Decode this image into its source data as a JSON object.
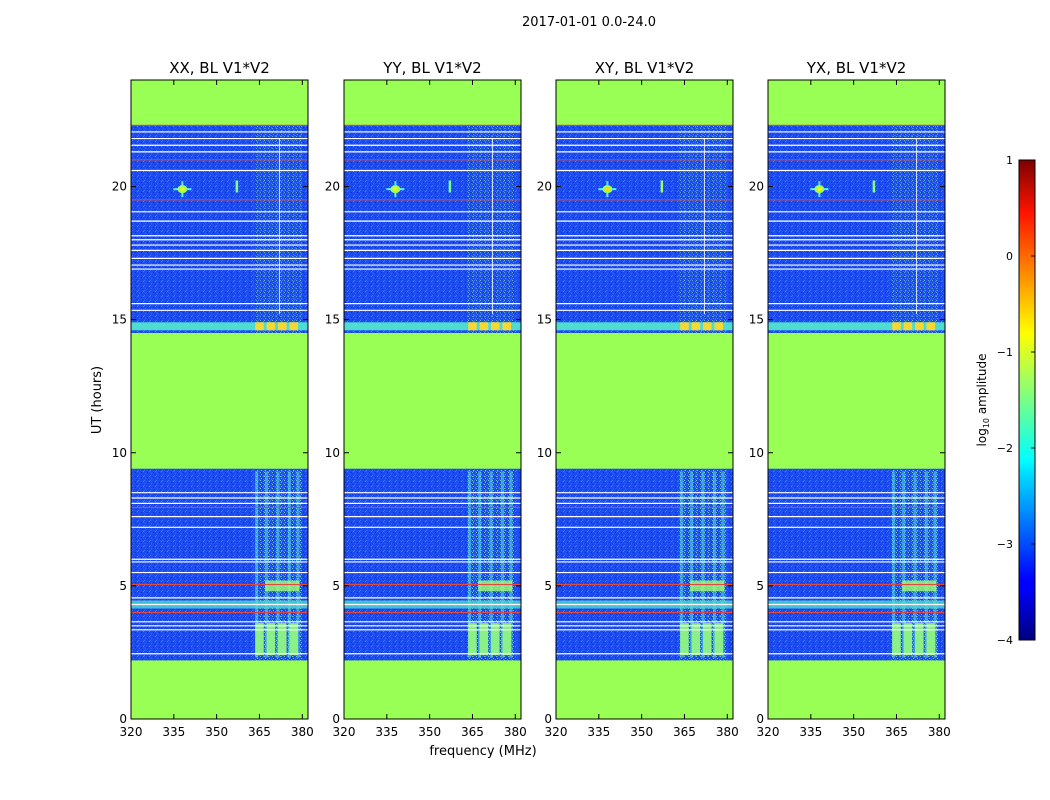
{
  "figure": {
    "suptitle": "2017-01-01 0.0-24.0",
    "shared_xlabel": "frequency (MHz)",
    "shared_ylabel": "UT (hours)"
  },
  "chart_data": [
    {
      "type": "heatmap",
      "title": "XX, BL V1*V2",
      "xlabel": "frequency (MHz)",
      "ylabel": "UT (hours)",
      "xlim": [
        320,
        382
      ],
      "ylim": [
        0,
        24
      ],
      "xticks": [
        320,
        335,
        350,
        365,
        380
      ],
      "yticks": [
        0,
        5,
        10,
        15,
        20
      ],
      "color_metric": "log10 amplitude",
      "masked_hours": [
        [
          0.0,
          2.2
        ],
        [
          9.4,
          14.5
        ],
        [
          22.3,
          24.0
        ]
      ],
      "bright_features": [
        {
          "freq": 338,
          "hour": 19.9,
          "log_amp": -0.9
        },
        {
          "freq": 357,
          "hour": 20.0,
          "log_amp": -1.5
        }
      ],
      "rfi_band_mhz": [
        363,
        380
      ]
    },
    {
      "type": "heatmap",
      "title": "YY, BL V1*V2",
      "xlabel": "frequency (MHz)",
      "ylabel": "",
      "xlim": [
        320,
        382
      ],
      "ylim": [
        0,
        24
      ],
      "xticks": [
        320,
        335,
        350,
        365,
        380
      ],
      "yticks": [
        0,
        5,
        10,
        15,
        20
      ],
      "color_metric": "log10 amplitude",
      "masked_hours": [
        [
          0.0,
          2.2
        ],
        [
          9.4,
          14.5
        ],
        [
          22.3,
          24.0
        ]
      ],
      "bright_features": [
        {
          "freq": 338,
          "hour": 19.9,
          "log_amp": -1.0
        },
        {
          "freq": 357,
          "hour": 20.0,
          "log_amp": -1.6
        }
      ],
      "rfi_band_mhz": [
        363,
        380
      ]
    },
    {
      "type": "heatmap",
      "title": "XY, BL V1*V2",
      "xlabel": "frequency (MHz)",
      "ylabel": "",
      "xlim": [
        320,
        382
      ],
      "ylim": [
        0,
        24
      ],
      "xticks": [
        320,
        335,
        350,
        365,
        380
      ],
      "yticks": [
        0,
        5,
        10,
        15,
        20
      ],
      "color_metric": "log10 amplitude",
      "masked_hours": [
        [
          0.0,
          2.2
        ],
        [
          9.4,
          14.5
        ],
        [
          22.3,
          24.0
        ]
      ],
      "bright_features": [
        {
          "freq": 338,
          "hour": 19.9,
          "log_amp": -0.7
        },
        {
          "freq": 357,
          "hour": 20.0,
          "log_amp": -1.4
        }
      ],
      "rfi_band_mhz": [
        363,
        380
      ]
    },
    {
      "type": "heatmap",
      "title": "YX, BL V1*V2",
      "xlabel": "frequency (MHz)",
      "ylabel": "",
      "xlim": [
        320,
        382
      ],
      "ylim": [
        0,
        24
      ],
      "xticks": [
        320,
        335,
        350,
        365,
        380
      ],
      "yticks": [
        0,
        5,
        10,
        15,
        20
      ],
      "color_metric": "log10 amplitude",
      "masked_hours": [
        [
          0.0,
          2.2
        ],
        [
          9.4,
          14.5
        ],
        [
          22.3,
          24.0
        ]
      ],
      "bright_features": [
        {
          "freq": 338,
          "hour": 19.9,
          "log_amp": -0.9
        },
        {
          "freq": 357,
          "hour": 20.0,
          "log_amp": -1.5
        }
      ],
      "rfi_band_mhz": [
        363,
        380
      ]
    }
  ],
  "colorbar": {
    "label": "log10 amplitude",
    "label_base": "log",
    "label_sub": "10",
    "label_rest": " amplitude",
    "min": -4,
    "max": 1,
    "ticks": [
      {
        "value": 1,
        "label": "1"
      },
      {
        "value": 0,
        "label": "0"
      },
      {
        "value": -1,
        "label": "−1"
      },
      {
        "value": -2,
        "label": "−2"
      },
      {
        "value": -3,
        "label": "−3"
      },
      {
        "value": -4,
        "label": "−4"
      }
    ],
    "masked_value": -1.15
  },
  "colors": {
    "masked": "#99ff55",
    "background_noise": "#1c4cf0",
    "flag_line_white": "#ffffff",
    "flag_line_red": "#e2483c",
    "strip": "#4fdcd0",
    "rfi_yellow": "#f5d830"
  }
}
